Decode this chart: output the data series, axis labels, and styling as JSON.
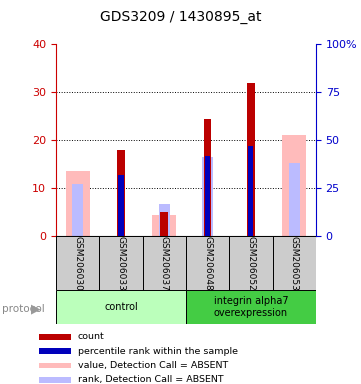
{
  "title": "GDS3209 / 1430895_at",
  "samples": [
    "GSM206030",
    "GSM206033",
    "GSM206037",
    "GSM206048",
    "GSM206052",
    "GSM206053"
  ],
  "count_values": [
    0,
    18,
    5,
    24.5,
    32,
    0
  ],
  "rank_values_pct": [
    0,
    32,
    0,
    42,
    47,
    0
  ],
  "absent_value_bars": [
    13.5,
    0,
    4.5,
    0,
    0,
    21
  ],
  "absent_rank_bars_pct": [
    27,
    0,
    17,
    41,
    0,
    38
  ],
  "groups": [
    {
      "label": "control",
      "samples": [
        0,
        1,
        2
      ],
      "color": "#bbffbb"
    },
    {
      "label": "integrin alpha7\noverexpression",
      "samples": [
        3,
        4,
        5
      ],
      "color": "#44cc44"
    }
  ],
  "ylim_left": [
    0,
    40
  ],
  "ylim_right": [
    0,
    100
  ],
  "yticks_left": [
    0,
    10,
    20,
    30,
    40
  ],
  "yticks_right": [
    0,
    25,
    50,
    75,
    100
  ],
  "yticklabels_right": [
    "0",
    "25",
    "50",
    "75",
    "100%"
  ],
  "left_axis_color": "#cc0000",
  "right_axis_color": "#0000cc",
  "color_count": "#bb0000",
  "color_rank": "#0000bb",
  "color_absent_value": "#ffbbbb",
  "color_absent_rank": "#bbbbff",
  "legend_items": [
    {
      "color": "#bb0000",
      "label": "count"
    },
    {
      "color": "#0000bb",
      "label": "percentile rank within the sample"
    },
    {
      "color": "#ffbbbb",
      "label": "value, Detection Call = ABSENT"
    },
    {
      "color": "#bbbbff",
      "label": "rank, Detection Call = ABSENT"
    }
  ]
}
